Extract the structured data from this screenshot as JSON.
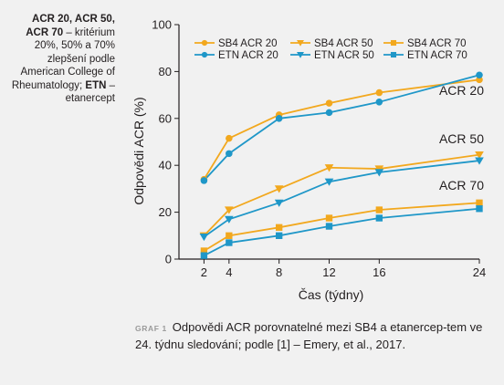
{
  "side_note": {
    "bold1": "ACR 20, ACR 50, ACR 70",
    "text1": " – kritérium 20%, 50% a 70% zlepšení podle American College of Rheumatology; ",
    "bold2": "ETN",
    "text2": " – etanercept"
  },
  "caption": {
    "label": "GRAF 1",
    "text": "Odpovědi ACR porovnatelné mezi SB4 a etanercep-tem ve 24. týdnu sledování; podle [1] – Emery, et al., 2017."
  },
  "colors": {
    "sb4": "#f2a81e",
    "etn": "#1f97c8",
    "axis": "#231f20"
  },
  "chart_data": {
    "type": "line",
    "xlabel": "Čas (týdny)",
    "ylabel": "Odpovědi ACR (%)",
    "xlim": [
      0,
      24
    ],
    "ylim": [
      0,
      100
    ],
    "xticks": [
      2,
      4,
      8,
      12,
      16,
      24
    ],
    "yticks": [
      0,
      20,
      40,
      60,
      80,
      100
    ],
    "x": [
      2,
      4,
      8,
      12,
      16,
      24
    ],
    "legend_position": "top",
    "group_labels": [
      "ACR 20",
      "ACR 50",
      "ACR 70"
    ],
    "series": [
      {
        "name": "SB4 ACR 20",
        "color": "#f2a81e",
        "marker": "circle",
        "values": [
          34,
          51.5,
          61.5,
          66.5,
          71,
          76.5
        ]
      },
      {
        "name": "SB4 ACR 50",
        "color": "#f2a81e",
        "marker": "triangle",
        "values": [
          10,
          21,
          30,
          39,
          38.5,
          44.5
        ]
      },
      {
        "name": "SB4 ACR 70",
        "color": "#f2a81e",
        "marker": "square",
        "values": [
          3.5,
          10,
          13.5,
          17.5,
          21,
          24
        ]
      },
      {
        "name": "ETN ACR 20",
        "color": "#1f97c8",
        "marker": "circle",
        "values": [
          33.5,
          45,
          60,
          62.5,
          67,
          78.5
        ]
      },
      {
        "name": "ETN ACR 50",
        "color": "#1f97c8",
        "marker": "triangle",
        "values": [
          9.5,
          17,
          24,
          33,
          37,
          42
        ]
      },
      {
        "name": "ETN ACR 70",
        "color": "#1f97c8",
        "marker": "square",
        "values": [
          1.5,
          7,
          10,
          14,
          17.5,
          21.5
        ]
      }
    ]
  }
}
